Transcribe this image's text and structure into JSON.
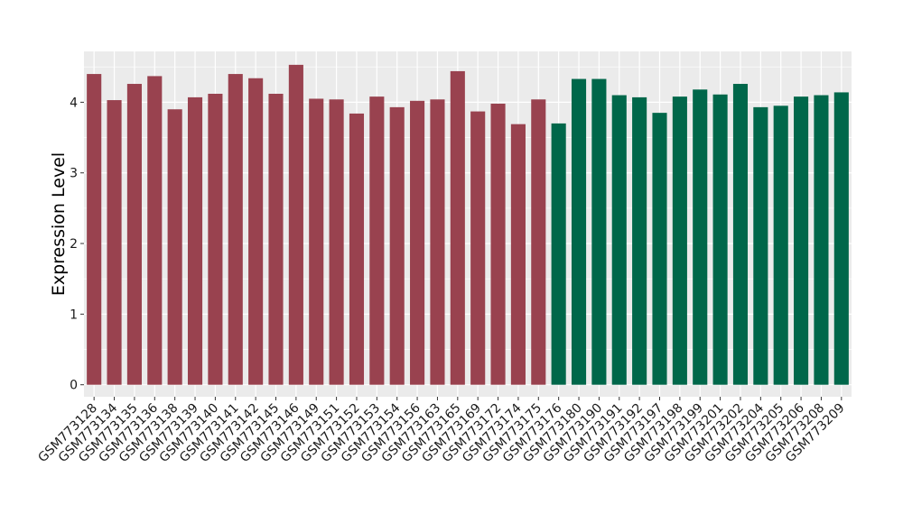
{
  "colors": {
    "panel_background": "#ebebeb",
    "grid_major": "#ffffff",
    "tick": "#333333",
    "series_a": "#99424f",
    "series_b": "#00674a"
  },
  "chart_data": {
    "type": "bar",
    "title": "",
    "xlabel": "",
    "ylabel": "Expression Level",
    "ylim": [
      -0.17,
      4.72
    ],
    "yticks": [
      0,
      1,
      2,
      3,
      4
    ],
    "grid": true,
    "legend": "none",
    "categories": [
      "GSM773128",
      "GSM773134",
      "GSM773135",
      "GSM773136",
      "GSM773138",
      "GSM773139",
      "GSM773140",
      "GSM773141",
      "GSM773142",
      "GSM773145",
      "GSM773146",
      "GSM773149",
      "GSM773151",
      "GSM773152",
      "GSM773153",
      "GSM773154",
      "GSM773156",
      "GSM773163",
      "GSM773165",
      "GSM773169",
      "GSM773172",
      "GSM773174",
      "GSM773175",
      "GSM773176",
      "GSM773180",
      "GSM773190",
      "GSM773191",
      "GSM773192",
      "GSM773197",
      "GSM773198",
      "GSM773199",
      "GSM773201",
      "GSM773202",
      "GSM773204",
      "GSM773205",
      "GSM773206",
      "GSM773208",
      "GSM773209"
    ],
    "values": [
      4.4,
      4.03,
      4.26,
      4.37,
      3.9,
      4.07,
      4.12,
      4.4,
      4.34,
      4.12,
      4.53,
      4.05,
      4.04,
      3.84,
      4.08,
      3.93,
      4.02,
      4.04,
      4.44,
      3.87,
      3.98,
      3.69,
      4.04,
      3.7,
      4.33,
      4.33,
      4.1,
      4.07,
      3.85,
      4.08,
      4.18,
      4.11,
      4.26,
      3.93,
      3.95,
      4.08,
      4.1,
      4.14
    ],
    "groups": [
      "a",
      "a",
      "a",
      "a",
      "a",
      "a",
      "a",
      "a",
      "a",
      "a",
      "a",
      "a",
      "a",
      "a",
      "a",
      "a",
      "a",
      "a",
      "a",
      "a",
      "a",
      "a",
      "a",
      "b",
      "b",
      "b",
      "b",
      "b",
      "b",
      "b",
      "b",
      "b",
      "b",
      "b",
      "b",
      "b",
      "b",
      "b"
    ]
  }
}
